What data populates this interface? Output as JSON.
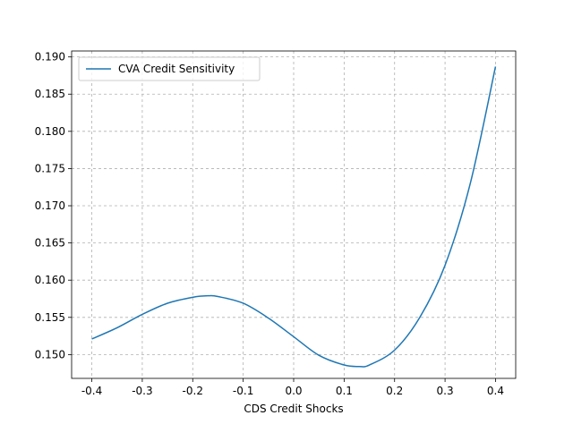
{
  "chart_data": {
    "type": "line",
    "title": "",
    "xlabel": "CDS Credit Shocks",
    "ylabel": "",
    "xlim": [
      -0.44,
      0.44
    ],
    "ylim": [
      0.1468,
      0.1908
    ],
    "xticks": [
      "-0.4",
      "-0.3",
      "-0.2",
      "-0.1",
      "0.0",
      "0.1",
      "0.2",
      "0.3",
      "0.4"
    ],
    "xtick_values": [
      -0.4,
      -0.3,
      -0.2,
      -0.1,
      0.0,
      0.1,
      0.2,
      0.3,
      0.4
    ],
    "yticks": [
      "0.150",
      "0.155",
      "0.160",
      "0.165",
      "0.170",
      "0.175",
      "0.180",
      "0.185",
      "0.190"
    ],
    "ytick_values": [
      0.15,
      0.155,
      0.16,
      0.165,
      0.17,
      0.175,
      0.18,
      0.185,
      0.19
    ],
    "grid": true,
    "legend_position": "top-left",
    "series": [
      {
        "name": "CVA Credit Sensitivity",
        "color": "#1f77b4",
        "x": [
          -0.4,
          -0.35,
          -0.3,
          -0.25,
          -0.2,
          -0.17,
          -0.15,
          -0.1,
          -0.05,
          0.0,
          0.05,
          0.1,
          0.13,
          0.15,
          0.2,
          0.25,
          0.3,
          0.35,
          0.4
        ],
        "y": [
          0.1521,
          0.1536,
          0.1554,
          0.1569,
          0.1577,
          0.1579,
          0.1578,
          0.1569,
          0.1549,
          0.1524,
          0.1499,
          0.1486,
          0.1484,
          0.1486,
          0.1506,
          0.155,
          0.162,
          0.173,
          0.1887
        ]
      }
    ]
  }
}
